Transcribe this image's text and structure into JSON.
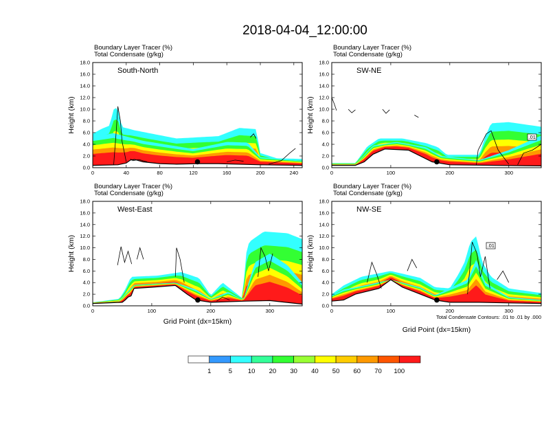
{
  "title": "2018-04-04_12:00:00",
  "colors": {
    "levels": [
      "#ffffff",
      "#3399ff",
      "#33ffff",
      "#33ff99",
      "#33ff33",
      "#99ff33",
      "#ffff00",
      "#ffcc00",
      "#ff9900",
      "#ff5500",
      "#ff1a1a"
    ],
    "terrain": "#000000",
    "contour": "#000000"
  },
  "chart_data": [
    {
      "type": "heatmap",
      "panel_id": "south-north",
      "label": "South-North",
      "header_line1": "Boundary Layer Tracer   (%)",
      "header_line2": "Total Condensate   (g/kg)",
      "ylabel": "Height (km)",
      "xlabel": "",
      "xlim": [
        0,
        250
      ],
      "ylim": [
        0,
        18
      ],
      "xticks": [
        0,
        40,
        80,
        120,
        160,
        200,
        240
      ],
      "yticks": [
        "0.0",
        "2.0",
        "4.0",
        "6.0",
        "8.0",
        "10.0",
        "12.0",
        "14.0",
        "16.0",
        "18.0"
      ],
      "marker": {
        "x": 125,
        "y": 1.0
      },
      "terrain": [
        [
          0,
          0.4
        ],
        [
          30,
          0.5
        ],
        [
          40,
          0.8
        ],
        [
          45,
          1.3
        ],
        [
          50,
          1.4
        ],
        [
          60,
          1.0
        ],
        [
          80,
          0.7
        ],
        [
          100,
          0.6
        ],
        [
          125,
          0.7
        ],
        [
          150,
          0.7
        ],
        [
          200,
          0.5
        ],
        [
          250,
          0.4
        ]
      ],
      "plumes": [
        {
          "top": [
            [
              0,
              5.8
            ],
            [
              10,
              6.6
            ],
            [
              20,
              7.2
            ],
            [
              26,
              10.5
            ],
            [
              32,
              9.5
            ],
            [
              34,
              7.0
            ],
            [
              50,
              6.4
            ],
            [
              100,
              5.0
            ],
            [
              150,
              5.4
            ],
            [
              175,
              6.8
            ],
            [
              195,
              6.6
            ],
            [
              200,
              2.5
            ],
            [
              220,
              1.6
            ],
            [
              250,
              1.5
            ]
          ],
          "scale": [
            1.0,
            0.8,
            0.6,
            0.45,
            0.3
          ]
        },
        {
          "top": [
            [
              0,
              5.3
            ],
            [
              25,
              5.9
            ],
            [
              60,
              4.6
            ],
            [
              120,
              3.2
            ],
            [
              160,
              4.4
            ],
            [
              185,
              4.3
            ],
            [
              200,
              1.8
            ],
            [
              250,
              1.2
            ]
          ],
          "scale": [
            1.0,
            0.85,
            0.7,
            0.55,
            0.4
          ]
        }
      ],
      "contours": [
        [
          [
            25,
            0.5
          ],
          [
            28,
            6.2
          ],
          [
            30,
            10.5
          ],
          [
            33,
            8.0
          ],
          [
            35,
            4.5
          ],
          [
            40,
            1.0
          ]
        ],
        [
          [
            45,
            1.5
          ],
          [
            48,
            1.2
          ],
          [
            55,
            1.4
          ],
          [
            65,
            1.0
          ]
        ],
        [
          [
            160,
            1.0
          ],
          [
            170,
            1.3
          ],
          [
            180,
            1.1
          ]
        ],
        [
          [
            210,
            0.6
          ],
          [
            225,
            1.2
          ],
          [
            235,
            2.5
          ],
          [
            242,
            3.3
          ]
        ],
        [
          [
            188,
            5.2
          ],
          [
            192,
            5.8
          ],
          [
            195,
            5.0
          ]
        ]
      ]
    },
    {
      "type": "heatmap",
      "panel_id": "sw-ne",
      "label": "SW-NE",
      "header_line1": "Boundary Layer Tracer   (%)",
      "header_line2": "Total Condensate   (g/kg)",
      "ylabel": "Height (km)",
      "xlabel": "",
      "xlim": [
        0,
        355
      ],
      "ylim": [
        0,
        18
      ],
      "xticks": [
        0,
        100,
        200,
        300
      ],
      "yticks": [
        "0.0",
        "2.0",
        "4.0",
        "6.0",
        "8.0",
        "10.0",
        "12.0",
        "14.0",
        "16.0",
        "18.0"
      ],
      "marker": {
        "x": 178,
        "y": 1.0
      },
      "annotation": ".01",
      "terrain": [
        [
          0,
          0.4
        ],
        [
          40,
          0.4
        ],
        [
          55,
          1.0
        ],
        [
          70,
          2.3
        ],
        [
          90,
          3.2
        ],
        [
          130,
          3.0
        ],
        [
          170,
          1.0
        ],
        [
          200,
          0.5
        ],
        [
          355,
          0.3
        ]
      ],
      "plumes": [
        {
          "top": [
            [
              40,
              0.8
            ],
            [
              60,
              3.6
            ],
            [
              80,
              5.0
            ],
            [
              120,
              5.0
            ],
            [
              160,
              4.2
            ],
            [
              180,
              3.5
            ],
            [
              195,
              2.2
            ],
            [
              250,
              2.2
            ],
            [
              260,
              5.3
            ],
            [
              270,
              7.6
            ],
            [
              300,
              7.8
            ],
            [
              355,
              7.0
            ]
          ],
          "scale": [
            1.0,
            0.8,
            0.6,
            0.45,
            0.3
          ]
        },
        {
          "top": [
            [
              40,
              0.5
            ],
            [
              70,
              3.8
            ],
            [
              110,
              4.4
            ],
            [
              160,
              3.5
            ],
            [
              185,
              2.0
            ],
            [
              250,
              1.3
            ],
            [
              300,
              3.0
            ],
            [
              355,
              5.5
            ]
          ],
          "scale": [
            1.0,
            0.85,
            0.7,
            0.55,
            0.4
          ]
        }
      ],
      "contours": [
        [
          [
            0,
            12.0
          ],
          [
            4,
            11.0
          ],
          [
            8,
            9.8
          ]
        ],
        [
          [
            28,
            10.0
          ],
          [
            34,
            9.4
          ],
          [
            40,
            9.9
          ]
        ],
        [
          [
            86,
            10.0
          ],
          [
            92,
            9.3
          ],
          [
            98,
            9.9
          ]
        ],
        [
          [
            140,
            9.0
          ],
          [
            147,
            8.6
          ]
        ],
        [
          [
            245,
            0.5
          ],
          [
            248,
            3.0
          ],
          [
            262,
            5.8
          ],
          [
            270,
            6.3
          ],
          [
            282,
            3.0
          ],
          [
            300,
            0.6
          ]
        ],
        [
          [
            315,
            0.5
          ],
          [
            325,
            2.5
          ],
          [
            340,
            3.0
          ],
          [
            355,
            4.0
          ]
        ]
      ]
    },
    {
      "type": "heatmap",
      "panel_id": "west-east",
      "label": "West-East",
      "header_line1": "Boundary Layer Tracer   (%)",
      "header_line2": "Total Condensate   (g/kg)",
      "ylabel": "Height (km)",
      "xlabel": "Grid Point (dx=15km)",
      "xlim": [
        0,
        355
      ],
      "ylim": [
        0,
        18
      ],
      "xticks": [
        0,
        100,
        200,
        300
      ],
      "yticks": [
        "0.0",
        "2.0",
        "4.0",
        "6.0",
        "8.0",
        "10.0",
        "12.0",
        "14.0",
        "16.0",
        "18.0"
      ],
      "marker": {
        "x": 178,
        "y": 1.0
      },
      "terrain": [
        [
          0,
          0.4
        ],
        [
          50,
          0.6
        ],
        [
          55,
          1.0
        ],
        [
          60,
          1.5
        ],
        [
          65,
          1.7
        ],
        [
          70,
          3.0
        ],
        [
          100,
          3.2
        ],
        [
          140,
          3.5
        ],
        [
          160,
          2.0
        ],
        [
          175,
          1.0
        ],
        [
          200,
          0.6
        ],
        [
          260,
          0.8
        ],
        [
          300,
          0.9
        ],
        [
          355,
          0.3
        ]
      ],
      "plumes": [
        {
          "top": [
            [
              0,
              0.6
            ],
            [
              45,
              1.2
            ],
            [
              55,
              2.8
            ],
            [
              65,
              5.0
            ],
            [
              110,
              5.2
            ],
            [
              150,
              5.8
            ],
            [
              180,
              4.8
            ],
            [
              200,
              1.8
            ],
            [
              220,
              4.0
            ],
            [
              255,
              1.2
            ],
            [
              255,
              3.0
            ],
            [
              260,
              9.0
            ],
            [
              265,
              11.0
            ],
            [
              290,
              12.8
            ],
            [
              330,
              12.5
            ],
            [
              355,
              11.5
            ]
          ],
          "scale": [
            1.0,
            0.8,
            0.6,
            0.45,
            0.3
          ]
        },
        {
          "top": [
            [
              0,
              0.4
            ],
            [
              45,
              0.8
            ],
            [
              55,
              2.0
            ],
            [
              70,
              3.6
            ],
            [
              140,
              4.0
            ],
            [
              175,
              2.8
            ],
            [
              200,
              1.2
            ],
            [
              230,
              2.4
            ],
            [
              255,
              1.0
            ],
            [
              275,
              7.5
            ],
            [
              300,
              9.0
            ],
            [
              330,
              7.0
            ],
            [
              355,
              4.0
            ]
          ],
          "scale": [
            1.0,
            0.85,
            0.7,
            0.55,
            0.4
          ]
        }
      ],
      "contours": [
        [
          [
            42,
            7.0
          ],
          [
            48,
            10.2
          ],
          [
            54,
            7.5
          ],
          [
            60,
            9.4
          ],
          [
            66,
            7.2
          ]
        ],
        [
          [
            75,
            8.0
          ],
          [
            80,
            10.0
          ],
          [
            86,
            8.0
          ]
        ],
        [
          [
            140,
            5.0
          ],
          [
            142,
            10.0
          ],
          [
            148,
            8.0
          ],
          [
            155,
            4.0
          ]
        ],
        [
          [
            280,
            5.0
          ],
          [
            285,
            10.0
          ],
          [
            292,
            8.5
          ],
          [
            298,
            6.0
          ],
          [
            305,
            9.0
          ]
        ],
        [
          [
            210,
            0.8
          ],
          [
            220,
            1.5
          ],
          [
            232,
            1.0
          ]
        ]
      ]
    },
    {
      "type": "heatmap",
      "panel_id": "nw-se",
      "label": "NW-SE",
      "header_line1": "Boundary Layer Tracer   (%)",
      "header_line2": "Total Condensate   (g/kg)",
      "ylabel": "Height (km)",
      "xlabel": "Grid Point (dx=15km)",
      "xlim": [
        0,
        355
      ],
      "ylim": [
        0,
        18
      ],
      "xticks": [
        0,
        100,
        200,
        300
      ],
      "yticks": [
        "0.0",
        "2.0",
        "4.0",
        "6.0",
        "8.0",
        "10.0",
        "12.0",
        "14.0",
        "16.0",
        "18.0"
      ],
      "marker": {
        "x": 178,
        "y": 1.0
      },
      "annotation": ".01",
      "footnote": "Total Condensate Contours: .01 to .01 by .000",
      "terrain": [
        [
          0,
          0.8
        ],
        [
          20,
          1.0
        ],
        [
          40,
          2.0
        ],
        [
          80,
          3.0
        ],
        [
          100,
          4.5
        ],
        [
          120,
          3.2
        ],
        [
          150,
          2.0
        ],
        [
          175,
          1.0
        ],
        [
          200,
          0.6
        ],
        [
          250,
          0.6
        ],
        [
          300,
          0.5
        ],
        [
          355,
          0.4
        ]
      ],
      "plumes": [
        {
          "top": [
            [
              0,
              2.0
            ],
            [
              20,
              3.5
            ],
            [
              50,
              5.0
            ],
            [
              100,
              6.0
            ],
            [
              150,
              4.8
            ],
            [
              175,
              3.2
            ],
            [
              200,
              3.0
            ],
            [
              215,
              5.5
            ],
            [
              225,
              7.5
            ],
            [
              235,
              11.0
            ],
            [
              245,
              12.0
            ],
            [
              255,
              7.5
            ],
            [
              270,
              5.0
            ],
            [
              300,
              3.0
            ],
            [
              355,
              2.2
            ]
          ],
          "scale": [
            1.0,
            0.8,
            0.6,
            0.45,
            0.3
          ]
        },
        {
          "top": [
            [
              0,
              1.8
            ],
            [
              20,
              2.8
            ],
            [
              60,
              3.6
            ],
            [
              100,
              4.5
            ],
            [
              150,
              3.2
            ],
            [
              175,
              1.8
            ],
            [
              230,
              4.5
            ],
            [
              245,
              8.0
            ],
            [
              260,
              4.0
            ],
            [
              300,
              1.5
            ],
            [
              355,
              1.0
            ]
          ],
          "scale": [
            1.0,
            0.85,
            0.7,
            0.55,
            0.4
          ]
        }
      ],
      "contours": [
        [
          [
            60,
            4.0
          ],
          [
            68,
            7.5
          ],
          [
            76,
            5.5
          ],
          [
            84,
            3.0
          ]
        ],
        [
          [
            128,
            6.0
          ],
          [
            136,
            8.0
          ],
          [
            144,
            6.5
          ]
        ],
        [
          [
            230,
            2.0
          ],
          [
            238,
            11.0
          ],
          [
            246,
            9.0
          ],
          [
            252,
            5.0
          ],
          [
            260,
            8.5
          ],
          [
            268,
            3.0
          ]
        ],
        [
          [
            280,
            4.5
          ],
          [
            290,
            6.0
          ],
          [
            300,
            4.0
          ]
        ]
      ]
    }
  ],
  "colorbar": {
    "labels": [
      "1",
      "5",
      "10",
      "20",
      "30",
      "40",
      "50",
      "60",
      "70",
      "100"
    ]
  }
}
